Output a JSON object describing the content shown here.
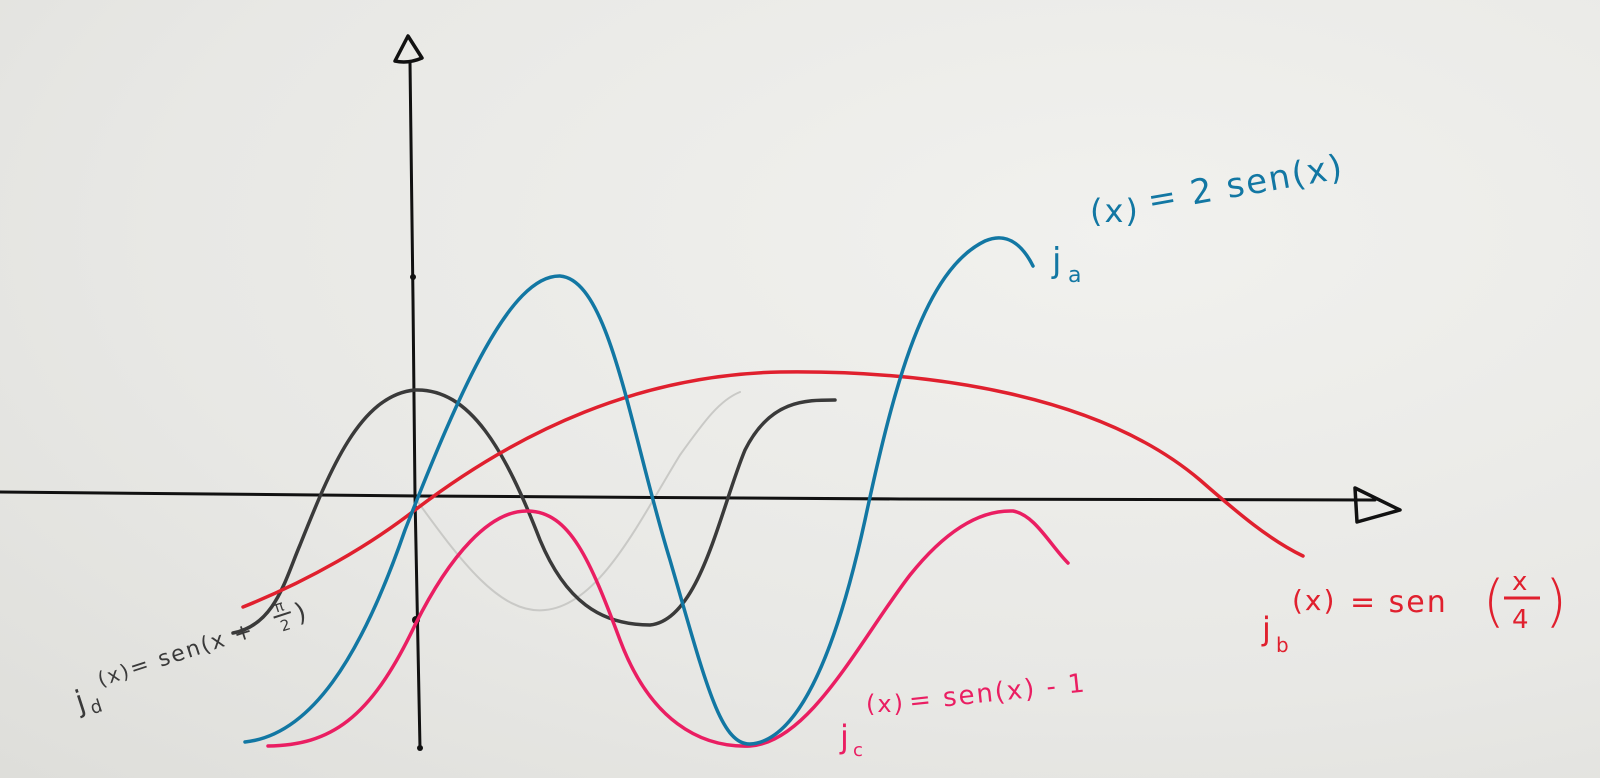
{
  "labels": {
    "a": {
      "prefix": "j",
      "sub": "a",
      "arg": "(x)",
      "expr": " = 2 sen(x)"
    },
    "b": {
      "prefix": "j",
      "sub": "b",
      "arg": "(x)",
      "expr": " = sen",
      "num": "x",
      "den": "4"
    },
    "c": {
      "prefix": "j",
      "sub": "c",
      "arg": "(x)",
      "expr": " = sen(x) - 1"
    },
    "d": {
      "prefix": "j",
      "sub": "d",
      "arg": "(x)",
      "expr": " = sen(x + ",
      "frac_num": "π",
      "frac_den": "2",
      "close": ")"
    }
  },
  "colors": {
    "axis": "#111111",
    "blue": "#1277a3",
    "red": "#e0202e",
    "pink": "#ea1e62",
    "gray": "#3a3a3a",
    "pencil": "#c9c9c6"
  }
}
